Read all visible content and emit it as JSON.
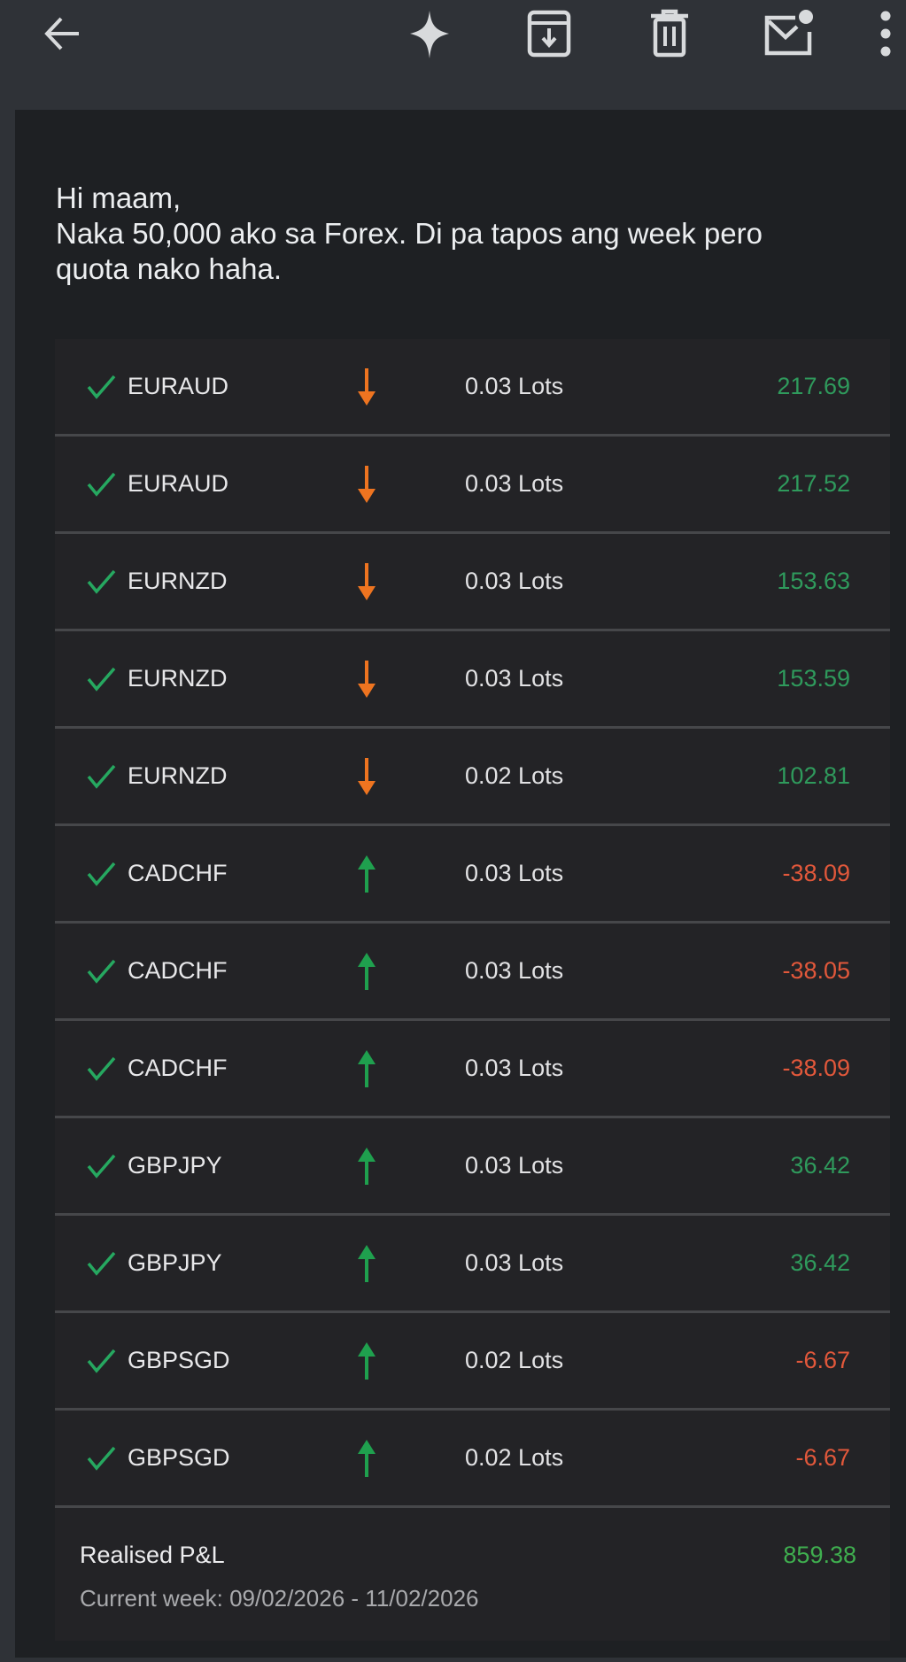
{
  "toolbar": {
    "icons": [
      "back-arrow-icon",
      "gemini-sparkle-icon",
      "archive-icon",
      "delete-icon",
      "mark-unread-icon",
      "more-vert-icon"
    ]
  },
  "message": {
    "lines": [
      "Hi maam,",
      "Naka 50,000 ako sa Forex. Di pa tapos ang week pero",
      "quota nako haha."
    ]
  },
  "colors": {
    "positive": "#2f9a5c",
    "negative": "#e2583b",
    "sell_arrow": "#ee7420",
    "buy_arrow": "#1fa04e",
    "check": "#26a860",
    "total": "#3fae4f"
  },
  "trades": [
    {
      "pair": "EURAUD",
      "direction": "down",
      "lots": "0.03 Lots",
      "pnl": "217.69",
      "positive": true
    },
    {
      "pair": "EURAUD",
      "direction": "down",
      "lots": "0.03 Lots",
      "pnl": "217.52",
      "positive": true
    },
    {
      "pair": "EURNZD",
      "direction": "down",
      "lots": "0.03 Lots",
      "pnl": "153.63",
      "positive": true
    },
    {
      "pair": "EURNZD",
      "direction": "down",
      "lots": "0.03 Lots",
      "pnl": "153.59",
      "positive": true
    },
    {
      "pair": "EURNZD",
      "direction": "down",
      "lots": "0.02 Lots",
      "pnl": "102.81",
      "positive": true
    },
    {
      "pair": "CADCHF",
      "direction": "up",
      "lots": "0.03 Lots",
      "pnl": "-38.09",
      "positive": false
    },
    {
      "pair": "CADCHF",
      "direction": "up",
      "lots": "0.03 Lots",
      "pnl": "-38.05",
      "positive": false
    },
    {
      "pair": "CADCHF",
      "direction": "up",
      "lots": "0.03 Lots",
      "pnl": "-38.09",
      "positive": false
    },
    {
      "pair": "GBPJPY",
      "direction": "up",
      "lots": "0.03 Lots",
      "pnl": "36.42",
      "positive": true
    },
    {
      "pair": "GBPJPY",
      "direction": "up",
      "lots": "0.03 Lots",
      "pnl": "36.42",
      "positive": true
    },
    {
      "pair": "GBPSGD",
      "direction": "up",
      "lots": "0.02 Lots",
      "pnl": "-6.67",
      "positive": false
    },
    {
      "pair": "GBPSGD",
      "direction": "up",
      "lots": "0.02 Lots",
      "pnl": "-6.67",
      "positive": false
    }
  ],
  "summary": {
    "label": "Realised P&L",
    "value": "859.38",
    "week": "Current week: 09/02/2026 - 11/02/2026"
  }
}
